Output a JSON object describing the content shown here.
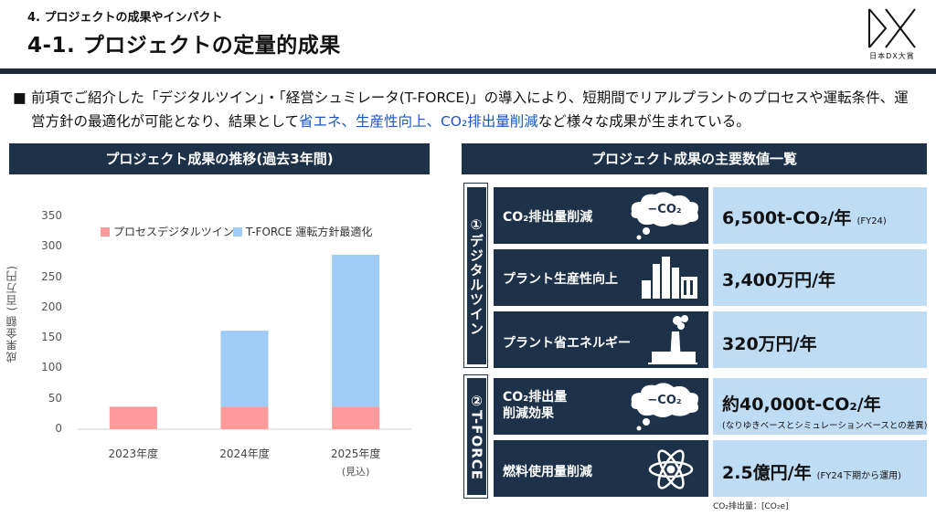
{
  "header": {
    "section": "4. プロジェクトの成果やインパクト",
    "title": "4-1. プロジェクトの定量的成果",
    "logo_text": "日本DX大賞"
  },
  "summary": {
    "bullet": "■",
    "text_before": "前項でご紹介した「デジタルツイン」・「経営シュミレータ(T-FORCE)」の導入により、短期間でリアルプラントのプロセスや運転条件、運営方針の最適化が可能となり、結果として",
    "highlight": "省エネ、生産性向上、CO₂排出量削減",
    "text_after": "など様々な成果が生まれている。"
  },
  "left_panel": {
    "title": "プロジェクト成果の推移(過去3年間)"
  },
  "right_panel": {
    "title": "プロジェクト成果の主要数値一覧"
  },
  "chart_data": {
    "type": "bar",
    "stacked": true,
    "categories": [
      "2023年度",
      "2024年度",
      "2025年度"
    ],
    "category_notes": [
      "",
      "",
      "(見込)"
    ],
    "series": [
      {
        "name": "プロセスデジタルツイン",
        "values": [
          37,
          37,
          37
        ],
        "color": "#ff9a9a"
      },
      {
        "name": "T-FORCE 運転方針最適化",
        "values": [
          0,
          125,
          250
        ],
        "color": "#9fcbf7"
      }
    ],
    "ylabel": "成果金額 (百万円)",
    "ylim": [
      0,
      350
    ],
    "yticks": [
      "0",
      "50",
      "100",
      "150",
      "200",
      "250",
      "300",
      "350"
    ],
    "grid": false,
    "legend": "top"
  },
  "groups": [
    {
      "label": "①デジタルツイン"
    },
    {
      "label": "②T-FORCE"
    }
  ],
  "rows": [
    {
      "label": "CO₂排出量削減",
      "icon": "co2-cloud-icon",
      "value": "6,500t-CO₂/年",
      "note": "(FY24)",
      "sub": ""
    },
    {
      "label": "プラント生産性向上",
      "icon": "factory-icon",
      "value": "3,400万円/年",
      "note": "",
      "sub": ""
    },
    {
      "label": "プラント省エネルギー",
      "icon": "chimney-icon",
      "value": "320万円/年",
      "note": "",
      "sub": ""
    },
    {
      "label": "CO₂排出量\n削減効果",
      "icon": "co2-cloud-icon",
      "value": "約40,000t-CO₂/年",
      "note": "",
      "sub": "(なりゆきベースとシミュレーションベースとの差異)"
    },
    {
      "label": "燃料使用量削減",
      "icon": "atom-icon",
      "value": "2.5億円/年",
      "note": "(FY24下期から運用)",
      "sub": ""
    }
  ],
  "footnote": "CO₂排出量：[CO₂e]"
}
